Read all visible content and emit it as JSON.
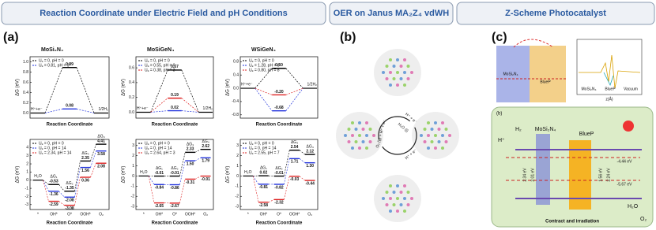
{
  "header": {
    "tabs": [
      "Reaction Coordinate under Electric Field and pH Conditions",
      "OER on Janus MA₂Z₄ vdWH",
      "Z-Scheme Photocatalyst"
    ]
  },
  "panel_labels": [
    "(a)",
    "(b)",
    "(c)"
  ],
  "panel_a": {
    "her": [
      {
        "title": "MoSi₂N₄",
        "y_label": "ΔG (eV)",
        "x_label": "Reaction Coordinate",
        "start_label": "H⁺+e⁻",
        "end_label": "1/2H₂",
        "ylim": [
          -0.1,
          1.1
        ],
        "yticks": [
          {
            "value": 0,
            "label": "0.0"
          },
          0.2,
          0.4,
          0.6,
          0.8,
          {
            "value": 1,
            "label": "1.0"
          }
        ],
        "series": [
          {
            "name": "Uₑ = 0, pH = 0",
            "color": "#000000",
            "value": 0.89
          },
          {
            "name": "Uₑ = 0.81, pH = 0",
            "color": "#2233dd",
            "value": 0.08
          }
        ]
      },
      {
        "title": "MoSiGeN₄",
        "y_label": "ΔG (eV)",
        "x_label": "Reaction Coordinate",
        "start_label": "H⁺+e⁻",
        "end_label": "1/2H₂",
        "ylim": [
          -0.08,
          0.75
        ],
        "yticks": [
          {
            "value": 0,
            "label": "0.0"
          },
          0.2,
          0.4,
          0.6
        ],
        "series": [
          {
            "name": "Uₑ = 0, pH = 0",
            "color": "#000000",
            "value": 0.57
          },
          {
            "name": "Uₑ = 0.55, pH = 0",
            "color": "#2233dd",
            "value": 0.02
          },
          {
            "name": "Uₑ = 0.38, pH = 3",
            "color": "#dd2222",
            "value": 0.19
          }
        ]
      },
      {
        "title": "WSiGeN₄",
        "y_label": "ΔG (eV)",
        "x_label": "Reaction Coordinate",
        "start_label": "H⁺+e⁻",
        "end_label": "1/2H₂",
        "ylim": [
          -0.9,
          0.95
        ],
        "yticks": [
          -0.8,
          -0.4,
          {
            "value": 0,
            "label": "0.0"
          },
          0.4,
          0.8
        ],
        "series": [
          {
            "name": "Uₑ = 0, pH = 0",
            "color": "#000000",
            "value": 0.6,
            "value_label": "0.60"
          },
          {
            "name": "Uₑ = 1.28, pH = 0",
            "color": "#2233dd",
            "value": -0.68
          },
          {
            "name": "Uₑ = 0.80, pH = 8",
            "color": "#dd2222",
            "value": -0.2,
            "value_label": "-0.20"
          }
        ]
      }
    ],
    "oer": [
      {
        "y_label": "ΔG (eV)",
        "x_label": "Reaction Coordinate",
        "categories": [
          "*",
          "OH*",
          "O*",
          "OOH*",
          "O₂"
        ],
        "start_label": "H₂O",
        "step_labels": [
          "ΔG₁",
          "ΔG₂",
          "ΔG₃",
          "ΔG₄"
        ],
        "ylim": [
          -3.6,
          5
        ],
        "yticks": [
          -3,
          -2,
          -1,
          0,
          1,
          2,
          3,
          4
        ],
        "series": [
          {
            "name": "Uₑ = 0, pH = 0",
            "color": "#000000",
            "values": [
              -0.53,
              -1.35,
              2.35,
              4.41
            ]
          },
          {
            "name": "Uₑ = 0, pH = 14",
            "color": "#2233dd",
            "values": [
              -1.36,
              -2.08,
              1.56,
              3.58
            ]
          },
          {
            "name": "Uₑ = 2.34, pH = 14",
            "color": "#dd2222",
            "values": [
              -2.59,
              -3.08,
              0.36,
              2.08
            ]
          }
        ]
      },
      {
        "y_label": "ΔG (eV)",
        "x_label": "Reaction Coordinate",
        "categories": [
          "*",
          "OH*",
          "O*",
          "OOH*",
          "O₂"
        ],
        "start_label": "H₂O",
        "step_labels": [
          "ΔG₁",
          "ΔG₂",
          "ΔG₃",
          "ΔG₄"
        ],
        "ylim": [
          -3.3,
          3.6
        ],
        "yticks": [
          -3,
          -2,
          -1,
          0,
          1,
          2,
          3
        ],
        "series": [
          {
            "name": "Uₑ = 0, pH = 0",
            "color": "#000000",
            "values": [
              -0.01,
              -0.01,
              2.33,
              2.62
            ]
          },
          {
            "name": "Uₑ = 0, pH = 14",
            "color": "#2233dd",
            "values": [
              -0.84,
              -0.86,
              1.5,
              1.79
            ],
            "value_labels": [
              "-0.84",
              "-0.86",
              "1.50",
              "1.79"
            ]
          },
          {
            "name": "Uₑ = 2.64, pH = 3",
            "color": "#dd2222",
            "values": [
              -2.65,
              -2.67,
              -0.31,
              -0.01
            ]
          }
        ]
      },
      {
        "y_label": "ΔG (eV)",
        "x_label": "Reaction Coordinate",
        "categories": [
          "*",
          "OH*",
          "O*",
          "OOH*",
          "O₂"
        ],
        "start_label": "H₂O",
        "step_labels": [
          "ΔG₁",
          "ΔG₂",
          "ΔG₃",
          "ΔG₄"
        ],
        "ylim": [
          -3.3,
          3.6
        ],
        "yticks": [
          -3,
          -2,
          -1,
          0,
          1,
          2,
          3
        ],
        "series": [
          {
            "name": "Uₑ = 0, pH = 0",
            "color": "#000000",
            "values": [
              0.02,
              -0.01,
              2.54,
              2.12
            ]
          },
          {
            "name": "Uₑ = 0, pH = 14",
            "color": "#2233dd",
            "values": [
              -0.81,
              -0.82,
              1.71,
              1.3
            ],
            "value_labels": [
              "-0.81",
              "-0.82",
              "1.71",
              "1.30"
            ]
          },
          {
            "name": "Uₑ = 2.55, pH = 7",
            "color": "#dd2222",
            "values": [
              -2.58,
              -2.32,
              -0.03,
              -0.44
            ]
          }
        ]
      }
    ]
  },
  "panel_b": {
    "cycle_labels": [
      "H⁺ + e⁻",
      "H₂O (l)",
      "H⁺ + e⁻",
      "O₂ (g) + H⁺ + e⁻"
    ]
  },
  "panel_c": {
    "band": {
      "left": "MoSi₂N₄",
      "right": "BlueP"
    },
    "inset": {
      "labels": [
        "MoSi₂N₄",
        "BlueP",
        "Vacuum"
      ],
      "x_label": "z(Å)"
    },
    "scheme": {
      "tag": "(b)",
      "h2": "H₂",
      "h_plus": "H⁺",
      "left": "MoSi₂N₄",
      "right": "BlueP",
      "levels": [
        "-4.44 eV",
        "-5.67 eV"
      ],
      "gaps": [
        "2.34 eV",
        "2.01 eV",
        "1.56 eV",
        "2.24 eV"
      ],
      "h2o": "H₂O",
      "o2": "O₂",
      "caption": "Contract and irradiation"
    }
  }
}
